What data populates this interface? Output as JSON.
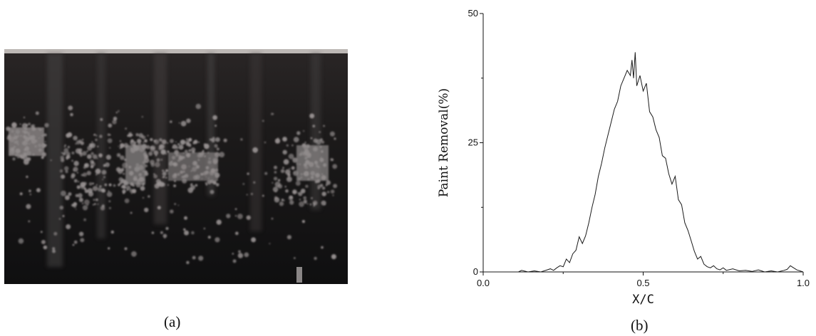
{
  "captions": {
    "a": "(a)",
    "b": "(b)"
  },
  "chart_data": {
    "type": "line",
    "xlabel": "X/C",
    "ylabel": "Paint Removal(%)",
    "xlim": [
      0.0,
      1.0
    ],
    "ylim": [
      0,
      50
    ],
    "xticks": [
      "0.0",
      "0.5",
      "1.0"
    ],
    "yticks": [
      "0",
      "25",
      "50"
    ],
    "grid": false,
    "series": [
      {
        "color": "#1a1a1a",
        "x": [
          0.0,
          0.11,
          0.12,
          0.14,
          0.16,
          0.18,
          0.2,
          0.21,
          0.22,
          0.23,
          0.24,
          0.25,
          0.26,
          0.27,
          0.28,
          0.29,
          0.3,
          0.31,
          0.32,
          0.33,
          0.34,
          0.35,
          0.36,
          0.37,
          0.38,
          0.39,
          0.4,
          0.41,
          0.42,
          0.43,
          0.44,
          0.45,
          0.46,
          0.465,
          0.47,
          0.475,
          0.48,
          0.49,
          0.5,
          0.51,
          0.52,
          0.53,
          0.54,
          0.55,
          0.56,
          0.57,
          0.58,
          0.59,
          0.6,
          0.61,
          0.62,
          0.63,
          0.64,
          0.65,
          0.66,
          0.67,
          0.68,
          0.69,
          0.7,
          0.71,
          0.72,
          0.73,
          0.74,
          0.75,
          0.76,
          0.78,
          0.8,
          0.82,
          0.84,
          0.86,
          0.88,
          0.9,
          0.92,
          0.94,
          0.95,
          0.96,
          0.97,
          0.98,
          1.0
        ],
        "y": [
          0,
          0,
          0.3,
          0,
          0.2,
          0,
          0.4,
          0.6,
          0.3,
          0.8,
          1.2,
          1.0,
          2.5,
          1.8,
          3.5,
          4.2,
          6.8,
          5.5,
          7.0,
          9.5,
          12.5,
          15.0,
          18.5,
          21.0,
          24.0,
          26.5,
          29.0,
          31.5,
          33.0,
          36.0,
          37.5,
          39.0,
          38.0,
          41.0,
          37.5,
          42.5,
          36.0,
          38.0,
          35.0,
          36.5,
          31.0,
          30.0,
          27.5,
          26.0,
          22.5,
          22.0,
          19.0,
          17.0,
          18.5,
          14.0,
          13.0,
          9.5,
          8.0,
          6.0,
          4.0,
          2.5,
          3.0,
          1.5,
          1.0,
          0.8,
          1.2,
          0.6,
          0.4,
          0.8,
          0.3,
          0.6,
          0.2,
          0.3,
          0.1,
          0.4,
          0,
          0.2,
          0,
          0.3,
          0.5,
          1.2,
          0.8,
          0.4,
          0
        ]
      }
    ]
  }
}
